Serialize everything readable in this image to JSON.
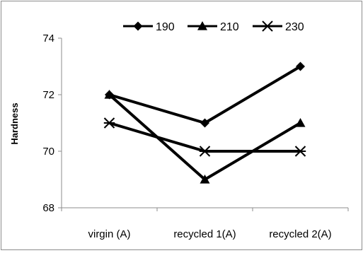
{
  "chart_data": {
    "type": "line",
    "title": "",
    "xlabel": "",
    "ylabel": "Hardness",
    "categories": [
      "virgin (A)",
      "recycled 1(A)",
      "recycled 2(A)"
    ],
    "ylim": [
      68,
      74
    ],
    "yticks": [
      68,
      70,
      72,
      74
    ],
    "grid": false,
    "legend_position": "top",
    "series": [
      {
        "name": "190",
        "marker": "diamond",
        "values": [
          72,
          71,
          73
        ]
      },
      {
        "name": "210",
        "marker": "triangle",
        "values": [
          72,
          69,
          71
        ]
      },
      {
        "name": "230",
        "marker": "asterisk",
        "values": [
          71,
          70,
          70
        ]
      }
    ],
    "colors": {
      "line": "#000000",
      "axis": "#8c8c8c"
    }
  }
}
